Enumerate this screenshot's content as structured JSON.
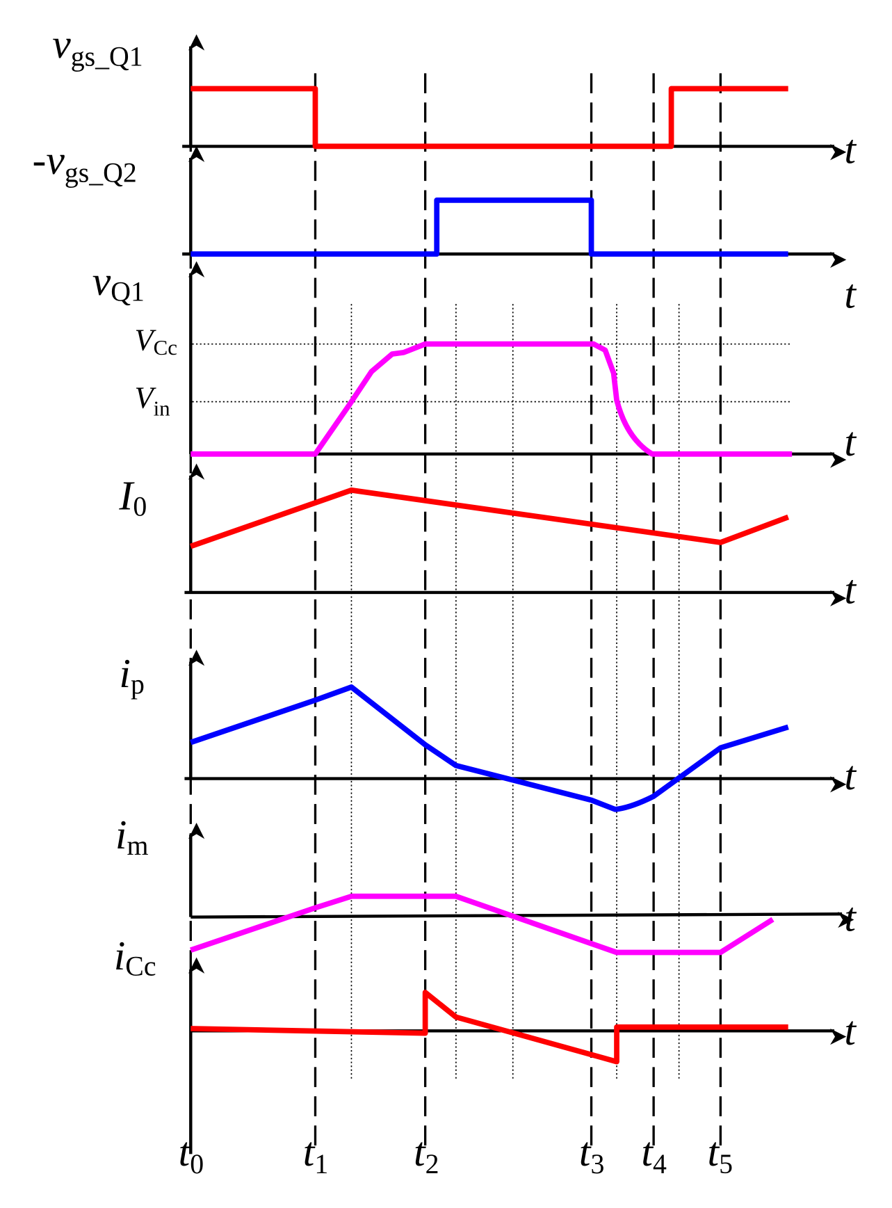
{
  "signals": [
    {
      "main": "v",
      "sub": "gs_Q1"
    },
    {
      "main": "-v",
      "sub": "gs_Q2"
    },
    {
      "main": "v",
      "sub": "Q1"
    },
    {
      "main": "I",
      "sub": "0"
    },
    {
      "main": "i",
      "sub": "p"
    },
    {
      "main": "i",
      "sub": "m"
    },
    {
      "main": "i",
      "sub": "Cc"
    }
  ],
  "levels": [
    {
      "main": "V",
      "sub": "Cc"
    },
    {
      "main": "V",
      "sub": "in"
    }
  ],
  "axis_labels": [
    "t",
    "t",
    "t",
    "t",
    "t",
    "t",
    "t"
  ],
  "times": [
    {
      "main": "t",
      "sub": "0"
    },
    {
      "main": "t",
      "sub": "1"
    },
    {
      "main": "t",
      "sub": "2"
    },
    {
      "main": "t",
      "sub": "3"
    },
    {
      "main": "t",
      "sub": "4"
    },
    {
      "main": "t",
      "sub": "5"
    }
  ]
}
